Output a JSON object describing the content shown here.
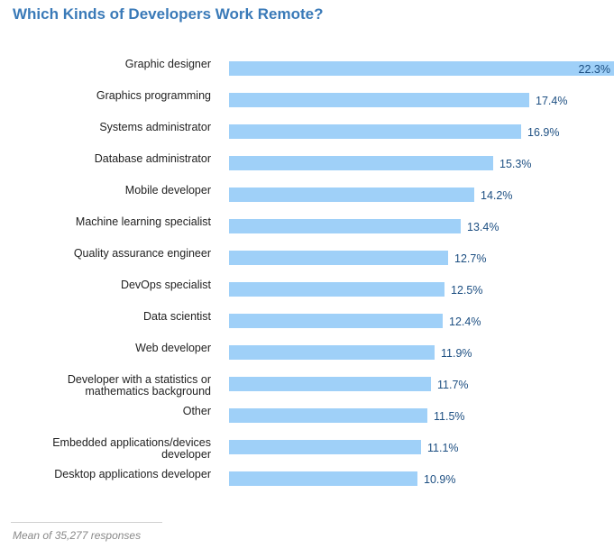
{
  "chart_data": {
    "type": "bar",
    "orientation": "horizontal",
    "title": "Which Kinds of Developers Work Remote?",
    "xlabel": "",
    "ylabel": "",
    "value_format": "percent_one_decimal",
    "categories": [
      [
        "Graphic designer"
      ],
      [
        "Graphics programming"
      ],
      [
        "Systems administrator"
      ],
      [
        "Database administrator"
      ],
      [
        "Mobile developer"
      ],
      [
        "Machine learning specialist"
      ],
      [
        "Quality assurance engineer"
      ],
      [
        "DevOps specialist"
      ],
      [
        "Data scientist"
      ],
      [
        "Web developer"
      ],
      [
        "Developer with a statistics or",
        "mathematics background"
      ],
      [
        "Other"
      ],
      [
        "Embedded applications/devices",
        "developer"
      ],
      [
        "Desktop applications developer"
      ]
    ],
    "values": [
      22.3,
      17.4,
      16.9,
      15.3,
      14.2,
      13.4,
      12.7,
      12.5,
      12.4,
      11.9,
      11.7,
      11.5,
      11.1,
      10.9
    ],
    "value_labels": [
      "22.3%",
      "17.4%",
      "16.9%",
      "15.3%",
      "14.2%",
      "13.4%",
      "12.7%",
      "12.5%",
      "12.4%",
      "11.9%",
      "11.7%",
      "11.5%",
      "11.1%",
      "10.9%"
    ],
    "xlim": [
      0,
      22.3
    ],
    "grid": false,
    "legend": "none",
    "bar_color": "#9fd0f8",
    "footnote": "Mean of 35,277 responses"
  },
  "colors": {
    "title": "#3a7ab8",
    "bar": "#9fd0f8",
    "value_text": "#1d4f82"
  }
}
